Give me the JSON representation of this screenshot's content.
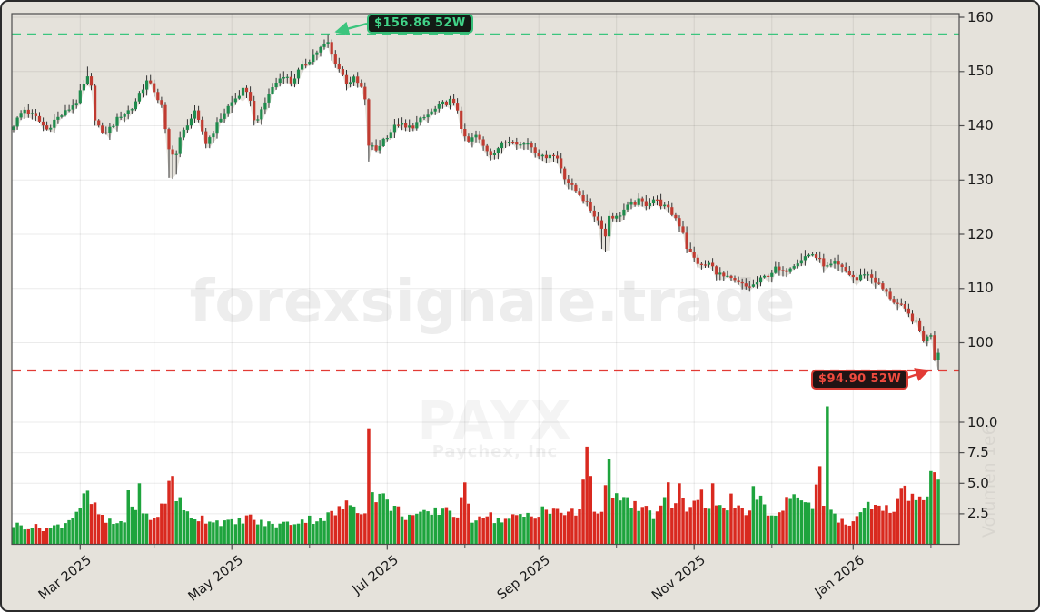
{
  "watermarks": {
    "site": "forexsignale.trade",
    "symbol": "PAYX",
    "company": "Paychex, Inc"
  },
  "annotations": {
    "high_label": "$156.86 52W",
    "low_label": "$94.90 52W"
  },
  "axis": {
    "price_ticks": [
      {
        "label": "160",
        "value": 160
      },
      {
        "label": "150",
        "value": 150
      },
      {
        "label": "140",
        "value": 140
      },
      {
        "label": "130",
        "value": 130
      },
      {
        "label": "120",
        "value": 120
      },
      {
        "label": "110",
        "value": 110
      },
      {
        "label": "100",
        "value": 100
      }
    ],
    "volume_ticks": [
      {
        "label": "10.0",
        "value": 10
      },
      {
        "label": "7.5",
        "value": 7.5
      },
      {
        "label": "5.0",
        "value": 5
      },
      {
        "label": "2.5",
        "value": 2.5
      }
    ],
    "date_major": [
      {
        "label": "Mar 2025",
        "day": 18
      },
      {
        "label": "May 2025",
        "day": 59
      },
      {
        "label": "Jul 2025",
        "day": 101
      },
      {
        "label": "Sep 2025",
        "day": 142
      },
      {
        "label": "Nov 2025",
        "day": 184
      },
      {
        "label": "Jan 2026",
        "day": 227
      }
    ],
    "date_minor_days": [
      38,
      80,
      122,
      163,
      205,
      248
    ],
    "volume_unit_label": "Volumen 1e6"
  },
  "colors": {
    "background": "#e5e2db",
    "plot_fill": "#ffffff",
    "grid": "rgba(0,0,0,0.08)",
    "spine": "#4d4d4d",
    "wick": "#333333",
    "candle_up": "#1f8b4d",
    "candle_down": "#c03b31",
    "volume_up": "#1ea43d",
    "volume_down": "#d9291f",
    "line_high": "#3cc57e",
    "line_low": "#e23b35"
  },
  "chart_data": {
    "type": "candlestick+volume",
    "symbol": "PAYX",
    "company": "Paychex, Inc",
    "high_52w": 156.86,
    "low_52w": 94.9,
    "price_axis_range": [
      93,
      160.5
    ],
    "volume_axis_range_millions": [
      0,
      12
    ],
    "x_axis_labels": [
      "Mar 2025",
      "May 2025",
      "Jul 2025",
      "Sep 2025",
      "Nov 2025",
      "Jan 2026"
    ],
    "days": 251,
    "close_keypoints": [
      [
        0,
        140.2
      ],
      [
        2,
        142.3
      ],
      [
        3,
        143.0
      ],
      [
        6,
        141.5
      ],
      [
        9,
        139.3
      ],
      [
        11,
        141.0
      ],
      [
        14,
        142.5
      ],
      [
        17,
        144.5
      ],
      [
        19,
        147.5
      ],
      [
        20,
        148.7
      ],
      [
        21,
        147.0
      ],
      [
        22,
        141.5
      ],
      [
        24,
        138.3
      ],
      [
        26,
        139.5
      ],
      [
        29,
        142.0
      ],
      [
        32,
        143.2
      ],
      [
        34,
        146.0
      ],
      [
        36,
        148.2
      ],
      [
        38,
        146.5
      ],
      [
        40,
        143.5
      ],
      [
        41,
        139.0
      ],
      [
        42,
        135.5
      ],
      [
        44,
        134.8
      ],
      [
        45,
        137.5
      ],
      [
        47,
        140.5
      ],
      [
        49,
        142.3
      ],
      [
        51,
        139.0
      ],
      [
        52,
        136.8
      ],
      [
        54,
        139.0
      ],
      [
        56,
        141.5
      ],
      [
        58,
        143.5
      ],
      [
        60,
        145.0
      ],
      [
        62,
        146.5
      ],
      [
        64,
        145.0
      ],
      [
        65,
        140.8
      ],
      [
        67,
        142.5
      ],
      [
        69,
        146.0
      ],
      [
        71,
        148.0
      ],
      [
        73,
        149.5
      ],
      [
        75,
        148.0
      ],
      [
        77,
        150.0
      ],
      [
        79,
        151.5
      ],
      [
        81,
        153.0
      ],
      [
        83,
        154.3
      ],
      [
        85,
        155.3
      ],
      [
        86,
        153.0
      ],
      [
        88,
        150.5
      ],
      [
        90,
        148.0
      ],
      [
        92,
        148.6
      ],
      [
        94,
        147.0
      ],
      [
        95,
        144.5
      ],
      [
        96,
        136.5
      ],
      [
        98,
        135.5
      ],
      [
        100,
        137.5
      ],
      [
        102,
        139.0
      ],
      [
        104,
        140.5
      ],
      [
        106,
        139.5
      ],
      [
        108,
        140.0
      ],
      [
        110,
        141.0
      ],
      [
        112,
        142.0
      ],
      [
        114,
        143.0
      ],
      [
        116,
        144.0
      ],
      [
        118,
        144.6
      ],
      [
        120,
        143.0
      ],
      [
        121,
        139.8
      ],
      [
        122,
        137.5
      ],
      [
        123,
        137.0
      ],
      [
        125,
        138.2
      ],
      [
        127,
        136.2
      ],
      [
        129,
        134.9
      ],
      [
        131,
        136.0
      ],
      [
        133,
        137.0
      ],
      [
        135,
        137.6
      ],
      [
        137,
        136.5
      ],
      [
        139,
        136.9
      ],
      [
        141,
        135.5
      ],
      [
        143,
        134.1
      ],
      [
        145,
        134.9
      ],
      [
        147,
        134.0
      ],
      [
        149,
        130.6
      ],
      [
        151,
        128.6
      ],
      [
        153,
        127.5
      ],
      [
        155,
        125.5
      ],
      [
        157,
        123.6
      ],
      [
        159,
        121.5
      ],
      [
        160,
        119.6
      ],
      [
        161,
        123.5
      ],
      [
        163,
        123.1
      ],
      [
        165,
        124.5
      ],
      [
        167,
        125.5
      ],
      [
        169,
        126.1
      ],
      [
        171,
        125.6
      ],
      [
        173,
        126.5
      ],
      [
        175,
        125.6
      ],
      [
        177,
        124.5
      ],
      [
        179,
        123.0
      ],
      [
        181,
        120.5
      ],
      [
        182,
        117.6
      ],
      [
        184,
        115.5
      ],
      [
        186,
        114.1
      ],
      [
        188,
        114.6
      ],
      [
        190,
        113.1
      ],
      [
        192,
        112.1
      ],
      [
        194,
        111.6
      ],
      [
        196,
        110.9
      ],
      [
        198,
        110.3
      ],
      [
        200,
        110.6
      ],
      [
        202,
        111.6
      ],
      [
        204,
        112.6
      ],
      [
        206,
        113.6
      ],
      [
        208,
        112.9
      ],
      [
        210,
        114.1
      ],
      [
        212,
        115.1
      ],
      [
        214,
        115.9
      ],
      [
        216,
        116.4
      ],
      [
        218,
        115.1
      ],
      [
        220,
        113.9
      ],
      [
        222,
        114.6
      ],
      [
        224,
        113.6
      ],
      [
        226,
        112.6
      ],
      [
        228,
        111.6
      ],
      [
        230,
        112.9
      ],
      [
        232,
        112.1
      ],
      [
        234,
        110.6
      ],
      [
        236,
        109.1
      ],
      [
        238,
        107.6
      ],
      [
        240,
        106.6
      ],
      [
        242,
        105.1
      ],
      [
        244,
        103.6
      ],
      [
        245,
        102.1
      ],
      [
        246,
        100.6
      ],
      [
        247,
        100.9
      ],
      [
        248,
        101.7
      ],
      [
        249,
        97.2
      ],
      [
        250,
        98.4
      ]
    ],
    "volume_keypoints_millions": [
      [
        0,
        1.6
      ],
      [
        6,
        1.4
      ],
      [
        10,
        1.3
      ],
      [
        14,
        1.8
      ],
      [
        17,
        2.7
      ],
      [
        19,
        3.6
      ],
      [
        20,
        3.9
      ],
      [
        22,
        2.9
      ],
      [
        25,
        1.8
      ],
      [
        28,
        1.7
      ],
      [
        30,
        2.0
      ],
      [
        31,
        4.6
      ],
      [
        32,
        2.6
      ],
      [
        34,
        4.4
      ],
      [
        35,
        2.4
      ],
      [
        38,
        2.1
      ],
      [
        41,
        3.4
      ],
      [
        42,
        5.2
      ],
      [
        43,
        5.6
      ],
      [
        44,
        4.1
      ],
      [
        46,
        2.6
      ],
      [
        50,
        2.2
      ],
      [
        55,
        1.9
      ],
      [
        60,
        1.7
      ],
      [
        63,
        2.3
      ],
      [
        66,
        1.8
      ],
      [
        70,
        1.6
      ],
      [
        74,
        1.7
      ],
      [
        78,
        2.0
      ],
      [
        82,
        2.1
      ],
      [
        86,
        2.4
      ],
      [
        89,
        3.0
      ],
      [
        92,
        3.3
      ],
      [
        94,
        2.8
      ],
      [
        95,
        3.1
      ],
      [
        96,
        9.5
      ],
      [
        97,
        4.3
      ],
      [
        98,
        4.1
      ],
      [
        99,
        4.0
      ],
      [
        100,
        3.7
      ],
      [
        101,
        3.5
      ],
      [
        103,
        2.9
      ],
      [
        106,
        2.4
      ],
      [
        110,
        2.3
      ],
      [
        114,
        2.6
      ],
      [
        116,
        3.0
      ],
      [
        118,
        2.9
      ],
      [
        120,
        2.3
      ],
      [
        122,
        4.3
      ],
      [
        124,
        2.1
      ],
      [
        127,
        2.6
      ],
      [
        130,
        2.1
      ],
      [
        133,
        2.0
      ],
      [
        136,
        2.2
      ],
      [
        139,
        2.4
      ],
      [
        141,
        2.2
      ],
      [
        143,
        3.3
      ],
      [
        145,
        2.5
      ],
      [
        148,
        2.7
      ],
      [
        151,
        2.5
      ],
      [
        153,
        2.6
      ],
      [
        155,
        8.0
      ],
      [
        156,
        5.6
      ],
      [
        157,
        3.0
      ],
      [
        159,
        2.7
      ],
      [
        161,
        7.0
      ],
      [
        162,
        4.7
      ],
      [
        164,
        3.1
      ],
      [
        166,
        3.5
      ],
      [
        168,
        3.1
      ],
      [
        171,
        2.7
      ],
      [
        174,
        2.4
      ],
      [
        177,
        4.3
      ],
      [
        178,
        2.9
      ],
      [
        180,
        5.0
      ],
      [
        182,
        2.8
      ],
      [
        184,
        3.0
      ],
      [
        186,
        3.9
      ],
      [
        188,
        3.1
      ],
      [
        189,
        5.0
      ],
      [
        191,
        2.8
      ],
      [
        194,
        3.5
      ],
      [
        196,
        2.7
      ],
      [
        198,
        2.2
      ],
      [
        200,
        4.4
      ],
      [
        202,
        3.4
      ],
      [
        204,
        2.7
      ],
      [
        206,
        2.4
      ],
      [
        208,
        2.6
      ],
      [
        210,
        4.6
      ],
      [
        212,
        3.6
      ],
      [
        214,
        3.9
      ],
      [
        216,
        3.4
      ],
      [
        218,
        6.4
      ],
      [
        219,
        3.8
      ],
      [
        220,
        11.3
      ],
      [
        221,
        3.3
      ],
      [
        223,
        1.8
      ],
      [
        226,
        1.7
      ],
      [
        228,
        2.1
      ],
      [
        230,
        2.6
      ],
      [
        231,
        3.1
      ],
      [
        233,
        2.9
      ],
      [
        235,
        2.6
      ],
      [
        237,
        3.0
      ],
      [
        239,
        3.4
      ],
      [
        241,
        4.8
      ],
      [
        243,
        3.9
      ],
      [
        245,
        4.1
      ],
      [
        246,
        3.4
      ],
      [
        248,
        6.0
      ],
      [
        249,
        5.9
      ],
      [
        250,
        5.3
      ]
    ],
    "wick_overrides": {
      "20": {
        "high": 150.9
      },
      "42": {
        "low": 130.4
      },
      "43": {
        "low": 130.2
      },
      "44": {
        "low": 131.0
      },
      "85": {
        "high": 156.86
      },
      "96": {
        "low": 133.4
      },
      "159": {
        "low": 117.3
      },
      "160": {
        "low": 116.8
      },
      "161": {
        "low": 117.0
      },
      "250": {
        "low": 94.9,
        "high": 99.0
      }
    }
  }
}
